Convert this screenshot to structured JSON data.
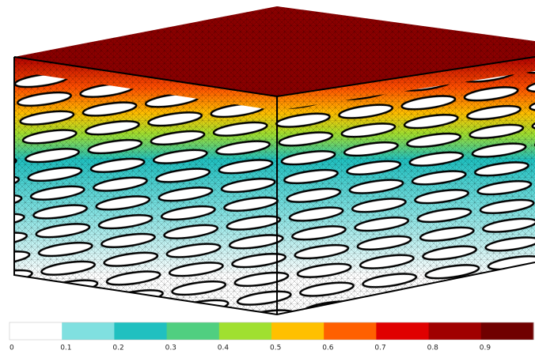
{
  "colorbar": {
    "ticks": [
      0,
      0.1,
      0.2,
      0.3,
      0.4,
      0.5,
      0.6,
      0.7,
      0.8,
      0.9
    ],
    "colors": [
      "#ffffff",
      "#80e0e0",
      "#20c0c0",
      "#50cf80",
      "#a0e030",
      "#ffc000",
      "#ff6000",
      "#e00000",
      "#a00000",
      "#700000"
    ]
  }
}
